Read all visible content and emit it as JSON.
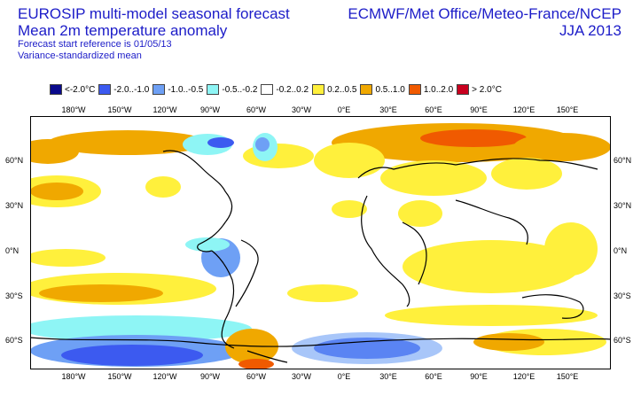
{
  "title": {
    "line1": "EUROSIP multi-model seasonal forecast",
    "line2": "Mean 2m temperature anomaly",
    "line3": "Forecast start reference is 01/05/13",
    "line4": "Variance-standardized mean"
  },
  "organizations": {
    "line1": "ECMWF/Met Office/Meteo-France/NCEP",
    "line2": "JJA 2013"
  },
  "legend": [
    {
      "label": "<-2.0°C",
      "color": "#0a0a8c"
    },
    {
      "label": "-2.0..-1.0",
      "color": "#3c5af0"
    },
    {
      "label": "-1.0..-0.5",
      "color": "#6ea0f5"
    },
    {
      "label": "-0.5..-0.2",
      "color": "#8ef5f5"
    },
    {
      "label": "-0.2..0.2",
      "color": "#ffffff"
    },
    {
      "label": "0.2..0.5",
      "color": "#fff03c"
    },
    {
      "label": "0.5..1.0",
      "color": "#f0a800"
    },
    {
      "label": "1.0..2.0",
      "color": "#f05a00"
    },
    {
      "label": "> 2.0°C",
      "color": "#c8001e"
    }
  ],
  "lon_labels": [
    "180°W",
    "150°W",
    "120°W",
    "90°W",
    "60°W",
    "30°W",
    "0°E",
    "30°E",
    "60°E",
    "90°E",
    "120°E",
    "150°E"
  ],
  "lat_labels": [
    "60°N",
    "30°N",
    "0°N",
    "30°S",
    "60°S"
  ]
}
